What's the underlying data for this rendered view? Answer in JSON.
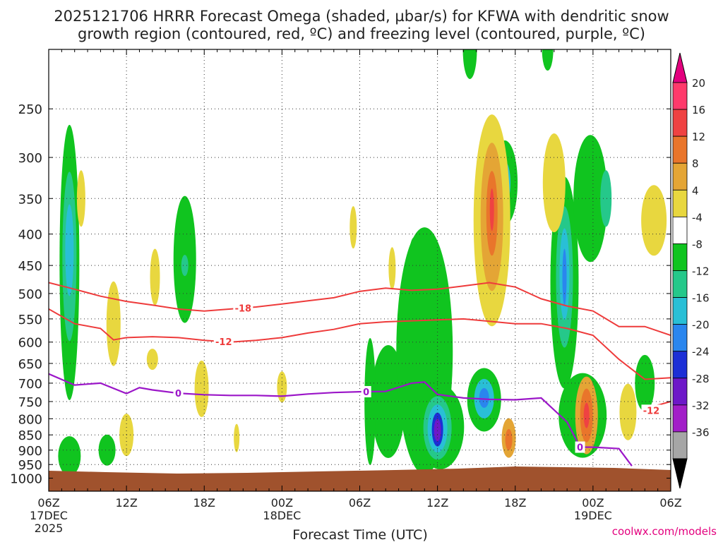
{
  "chart_data": {
    "type": "heatmap",
    "title_line1": "2025121706 HRRR Forecast Omega (shaded, µbar/s) for KFWA with dendritic snow",
    "title_line2": "growth region (contoured, red, ºC) and freezing level (contoured, purple, ºC)",
    "xlabel": "Forecast Time (UTC)",
    "credit": "coolwx.com/models",
    "x_range_hours": [
      0,
      48
    ],
    "y_scale": "pressure-log",
    "y_range_hPa": [
      200,
      1050
    ],
    "y_ticks": [
      250,
      300,
      350,
      400,
      450,
      500,
      550,
      600,
      650,
      700,
      750,
      800,
      850,
      900,
      950,
      1000
    ],
    "x_ticks": [
      {
        "h": 0,
        "label": "06Z",
        "sub": "17DEC",
        "sub2": "2025"
      },
      {
        "h": 6,
        "label": "12Z"
      },
      {
        "h": 12,
        "label": "18Z"
      },
      {
        "h": 18,
        "label": "00Z",
        "sub": "18DEC"
      },
      {
        "h": 24,
        "label": "06Z"
      },
      {
        "h": 30,
        "label": "12Z"
      },
      {
        "h": 36,
        "label": "18Z"
      },
      {
        "h": 42,
        "label": "00Z",
        "sub": "19DEC"
      },
      {
        "h": 48,
        "label": "06Z"
      }
    ],
    "colorbar": {
      "labels": [
        "20",
        "16",
        "12",
        "8",
        "4",
        "-4",
        "-8",
        "-12",
        "-16",
        "-20",
        "-24",
        "-28",
        "-32",
        "-36"
      ],
      "colors": [
        "#ff3a6b",
        "#ef4242",
        "#e9752b",
        "#e4a535",
        "#e8d73f",
        "#ffffff",
        "#10c41f",
        "#25c88a",
        "#29bfd6",
        "#2a86ee",
        "#1c2fd6",
        "#6d18c8",
        "#a21ec8",
        "#a6a6a6"
      ],
      "top_arrow_color": "#e3007e",
      "bottom_arrow_color": "#000000"
    },
    "omega_blobs": [
      {
        "h": 1.6,
        "p": 445,
        "color": "#10c41f",
        "rx": 14,
        "ry": 195
      },
      {
        "h": 1.6,
        "p": 435,
        "color": "#25c88a",
        "rx": 10,
        "ry": 120
      },
      {
        "h": 1.6,
        "p": 425,
        "color": "#29bfd6",
        "rx": 6,
        "ry": 65
      },
      {
        "h": 1.6,
        "p": 920,
        "color": "#10c41f",
        "rx": 16,
        "ry": 28
      },
      {
        "h": 4.5,
        "p": 900,
        "color": "#10c41f",
        "rx": 12,
        "ry": 22
      },
      {
        "h": 10.5,
        "p": 440,
        "color": "#10c41f",
        "rx": 16,
        "ry": 90
      },
      {
        "h": 10.5,
        "p": 450,
        "color": "#25c88a",
        "rx": 5,
        "ry": 15
      },
      {
        "h": 26.2,
        "p": 750,
        "color": "#10c41f",
        "rx": 24,
        "ry": 80
      },
      {
        "h": 24.8,
        "p": 750,
        "color": "#10c41f",
        "rx": 8,
        "ry": 90
      },
      {
        "h": 29.0,
        "p": 620,
        "color": "#10c41f",
        "rx": 40,
        "ry": 175
      },
      {
        "h": 30.2,
        "p": 825,
        "color": "#10c41f",
        "rx": 34,
        "ry": 60
      },
      {
        "h": 30.0,
        "p": 828,
        "color": "#25c88a",
        "rx": 20,
        "ry": 45
      },
      {
        "h": 30.0,
        "p": 830,
        "color": "#29bfd6",
        "rx": 14,
        "ry": 34
      },
      {
        "h": 30.0,
        "p": 833,
        "color": "#1c2fd6",
        "rx": 8,
        "ry": 24
      },
      {
        "h": 30.0,
        "p": 835,
        "color": "#6d18c8",
        "rx": 5,
        "ry": 16
      },
      {
        "h": 33.6,
        "p": 745,
        "color": "#10c41f",
        "rx": 24,
        "ry": 45
      },
      {
        "h": 33.6,
        "p": 742,
        "color": "#29bfd6",
        "rx": 14,
        "ry": 28
      },
      {
        "h": 33.6,
        "p": 740,
        "color": "#2a86ee",
        "rx": 7,
        "ry": 14
      },
      {
        "h": 28.2,
        "p": 450,
        "color": "#10c41f",
        "rx": 8,
        "ry": 40
      },
      {
        "h": 32.5,
        "p": 200,
        "color": "#10c41f",
        "rx": 10,
        "ry": 42
      },
      {
        "h": 35.2,
        "p": 330,
        "color": "#10c41f",
        "rx": 18,
        "ry": 60
      },
      {
        "h": 35.2,
        "p": 330,
        "color": "#29bfd6",
        "rx": 8,
        "ry": 30
      },
      {
        "h": 38.5,
        "p": 200,
        "color": "#10c41f",
        "rx": 8,
        "ry": 30
      },
      {
        "h": 39.8,
        "p": 480,
        "color": "#10c41f",
        "rx": 20,
        "ry": 150
      },
      {
        "h": 39.8,
        "p": 470,
        "color": "#25c88a",
        "rx": 12,
        "ry": 100
      },
      {
        "h": 39.8,
        "p": 465,
        "color": "#29bfd6",
        "rx": 7,
        "ry": 65
      },
      {
        "h": 39.8,
        "p": 470,
        "color": "#2a86ee",
        "rx": 3,
        "ry": 40
      },
      {
        "h": 41.8,
        "p": 350,
        "color": "#10c41f",
        "rx": 24,
        "ry": 90
      },
      {
        "h": 43.0,
        "p": 350,
        "color": "#25c88a",
        "rx": 8,
        "ry": 40
      },
      {
        "h": 41.2,
        "p": 790,
        "color": "#10c41f",
        "rx": 34,
        "ry": 60
      },
      {
        "h": 46.0,
        "p": 700,
        "color": "#10c41f",
        "rx": 14,
        "ry": 40
      },
      {
        "h": 2.5,
        "p": 350,
        "color": "#e8d73f",
        "rx": 6,
        "ry": 40
      },
      {
        "h": 5.0,
        "p": 560,
        "color": "#e8d73f",
        "rx": 10,
        "ry": 60
      },
      {
        "h": 8.2,
        "p": 470,
        "color": "#e8d73f",
        "rx": 7,
        "ry": 40
      },
      {
        "h": 8.0,
        "p": 640,
        "color": "#e8d73f",
        "rx": 8,
        "ry": 15
      },
      {
        "h": 11.8,
        "p": 715,
        "color": "#e8d73f",
        "rx": 10,
        "ry": 40
      },
      {
        "h": 6.0,
        "p": 850,
        "color": "#e8d73f",
        "rx": 10,
        "ry": 30
      },
      {
        "h": 18.0,
        "p": 710,
        "color": "#e8d73f",
        "rx": 7,
        "ry": 22
      },
      {
        "h": 23.5,
        "p": 390,
        "color": "#e8d73f",
        "rx": 5,
        "ry": 30
      },
      {
        "h": 26.5,
        "p": 455,
        "color": "#e8d73f",
        "rx": 5,
        "ry": 30
      },
      {
        "h": 14.5,
        "p": 860,
        "color": "#e8d73f",
        "rx": 4,
        "ry": 20
      },
      {
        "h": 34.2,
        "p": 380,
        "color": "#e8d73f",
        "rx": 26,
        "ry": 150
      },
      {
        "h": 34.2,
        "p": 375,
        "color": "#e4a535",
        "rx": 16,
        "ry": 105
      },
      {
        "h": 34.2,
        "p": 370,
        "color": "#e9752b",
        "rx": 8,
        "ry": 60
      },
      {
        "h": 34.2,
        "p": 365,
        "color": "#ef4242",
        "rx": 3,
        "ry": 30
      },
      {
        "h": 39.0,
        "p": 330,
        "color": "#e8d73f",
        "rx": 16,
        "ry": 70
      },
      {
        "h": 35.5,
        "p": 860,
        "color": "#e4a535",
        "rx": 10,
        "ry": 28
      },
      {
        "h": 35.5,
        "p": 865,
        "color": "#e9752b",
        "rx": 5,
        "ry": 15
      },
      {
        "h": 41.5,
        "p": 790,
        "color": "#e4a535",
        "rx": 16,
        "ry": 55
      },
      {
        "h": 41.5,
        "p": 790,
        "color": "#e9752b",
        "rx": 9,
        "ry": 38
      },
      {
        "h": 41.5,
        "p": 790,
        "color": "#ef4242",
        "rx": 4,
        "ry": 18
      },
      {
        "h": 44.7,
        "p": 780,
        "color": "#e8d73f",
        "rx": 12,
        "ry": 40
      },
      {
        "h": 46.7,
        "p": 380,
        "color": "#e8d73f",
        "rx": 18,
        "ry": 50
      }
    ],
    "dgz_lines": [
      {
        "label": "-18",
        "label_at_h": 15.0,
        "points": [
          [
            0,
            480
          ],
          [
            2,
            492
          ],
          [
            4,
            505
          ],
          [
            6,
            515
          ],
          [
            8,
            522
          ],
          [
            10,
            530
          ],
          [
            12,
            534
          ],
          [
            14,
            530
          ],
          [
            16,
            526
          ],
          [
            18,
            520
          ],
          [
            20,
            514
          ],
          [
            22,
            508
          ],
          [
            24,
            496
          ],
          [
            26,
            490
          ],
          [
            28,
            494
          ],
          [
            30,
            492
          ],
          [
            32,
            486
          ],
          [
            34,
            480
          ],
          [
            36,
            488
          ],
          [
            38,
            510
          ],
          [
            40,
            524
          ],
          [
            42,
            534
          ],
          [
            44,
            566
          ],
          [
            46,
            566
          ],
          [
            48,
            585
          ]
        ]
      },
      {
        "label": "-12",
        "label_at_h": 13.5,
        "points": [
          [
            0,
            530
          ],
          [
            2,
            560
          ],
          [
            4,
            570
          ],
          [
            5,
            595
          ],
          [
            6,
            590
          ],
          [
            8,
            588
          ],
          [
            10,
            590
          ],
          [
            12,
            596
          ],
          [
            14,
            600
          ],
          [
            16,
            596
          ],
          [
            18,
            590
          ],
          [
            20,
            580
          ],
          [
            22,
            572
          ],
          [
            24,
            560
          ],
          [
            26,
            556
          ],
          [
            28,
            554
          ],
          [
            30,
            552
          ],
          [
            32,
            550
          ],
          [
            34,
            555
          ],
          [
            36,
            560
          ],
          [
            38,
            560
          ],
          [
            40,
            570
          ],
          [
            42,
            585
          ],
          [
            44,
            640
          ],
          [
            46,
            690
          ],
          [
            48,
            686
          ]
        ]
      },
      {
        "label": "-12",
        "label_at_h": 46.5,
        "points": [
          [
            46,
            790
          ],
          [
            47,
            760
          ],
          [
            48,
            750
          ]
        ]
      }
    ],
    "freezing_line": {
      "label": "0",
      "label_at_h": 10.0,
      "points": [
        [
          0,
          676
        ],
        [
          2,
          705
        ],
        [
          4,
          700
        ],
        [
          6,
          728
        ],
        [
          7,
          712
        ],
        [
          8,
          718
        ],
        [
          10,
          727
        ],
        [
          12,
          731
        ],
        [
          14,
          733
        ],
        [
          16,
          733
        ],
        [
          18,
          735
        ],
        [
          20,
          729
        ],
        [
          22,
          725
        ],
        [
          24,
          723
        ],
        [
          26,
          722
        ],
        [
          28,
          700
        ],
        [
          29,
          697
        ],
        [
          30,
          730
        ],
        [
          32,
          740
        ],
        [
          34,
          744
        ],
        [
          36,
          745
        ],
        [
          38,
          740
        ],
        [
          40,
          810
        ],
        [
          41,
          890
        ],
        [
          42,
          890
        ],
        [
          44,
          895
        ],
        [
          45,
          955
        ]
      ]
    },
    "freezing_label_2_h": 24.5,
    "freezing_label_3_h": 41.0
  }
}
